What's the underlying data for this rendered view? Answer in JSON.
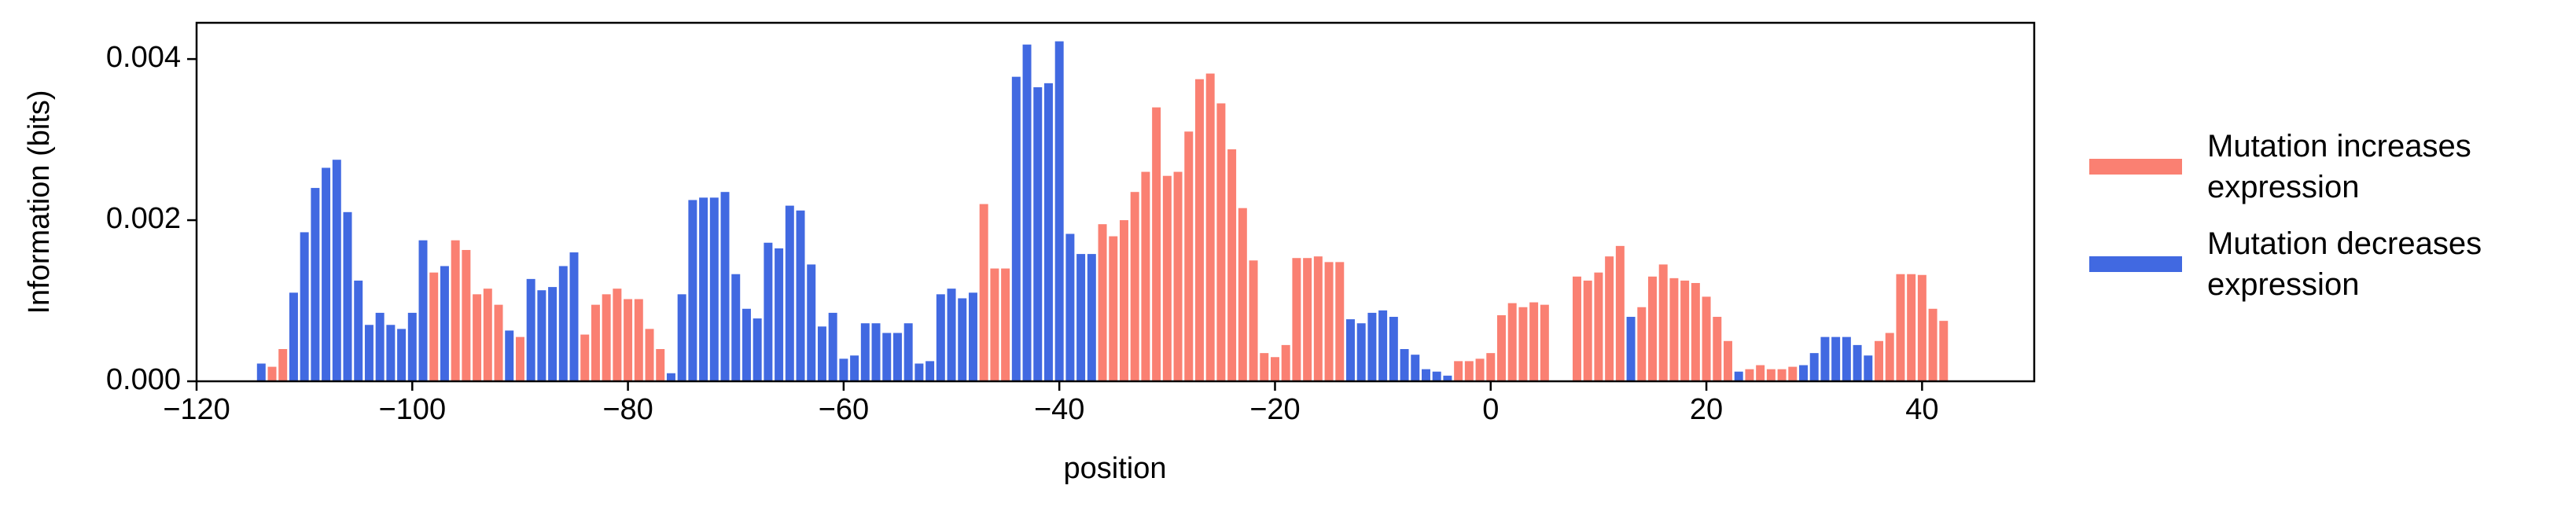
{
  "chart_data": {
    "type": "bar",
    "xlabel": "position",
    "ylabel": "Information (bits)",
    "xlim": [
      -120,
      50.4
    ],
    "ylim": [
      0,
      0.00445
    ],
    "xticks": [
      {
        "value": -120,
        "label": "−120"
      },
      {
        "value": -100,
        "label": "−100"
      },
      {
        "value": -80,
        "label": "−80"
      },
      {
        "value": -60,
        "label": "−60"
      },
      {
        "value": -40,
        "label": "−40"
      },
      {
        "value": -20,
        "label": "−20"
      },
      0,
      20,
      40
    ],
    "yticks": [
      {
        "value": 0,
        "label": "0.000"
      },
      {
        "value": 0.002,
        "label": "0.002"
      },
      {
        "value": 0.004,
        "label": "0.004"
      }
    ],
    "series": [
      {
        "name": "Mutation increases\nexpression",
        "color": "#fa8072",
        "x": [
          -113,
          -112,
          -98,
          -96,
          -95,
          -94,
          -93,
          -92,
          -90,
          -84,
          -83,
          -82,
          -81,
          -80,
          -79,
          -78,
          -77,
          -47,
          -46,
          -45,
          -36,
          -35,
          -34,
          -33,
          -32,
          -31,
          -30,
          -29,
          -28,
          -27,
          -26,
          -25,
          -24,
          -23,
          -22,
          -21,
          -20,
          -19,
          -18,
          -17,
          -16,
          -15,
          -14,
          -3,
          -2,
          -1,
          0,
          1,
          2,
          3,
          4,
          5,
          8,
          9,
          10,
          11,
          12,
          14,
          15,
          16,
          17,
          18,
          19,
          20,
          21,
          22,
          24,
          25,
          26,
          27,
          28,
          36,
          37,
          38,
          39,
          40,
          41,
          42
        ],
        "values": [
          0.00018,
          0.0004,
          0.00135,
          0.00175,
          0.00163,
          0.00108,
          0.00115,
          0.00095,
          0.00055,
          0.00058,
          0.00095,
          0.00108,
          0.00115,
          0.00102,
          0.00102,
          0.00065,
          0.0004,
          0.0022,
          0.0014,
          0.0014,
          0.00195,
          0.0018,
          0.002,
          0.00235,
          0.0026,
          0.0034,
          0.00255,
          0.0026,
          0.0031,
          0.00375,
          0.00382,
          0.00345,
          0.00288,
          0.00215,
          0.0015,
          0.00035,
          0.0003,
          0.00045,
          0.00153,
          0.00153,
          0.00155,
          0.00148,
          0.00148,
          0.00025,
          0.00025,
          0.00028,
          0.00035,
          0.00082,
          0.00097,
          0.00092,
          0.00098,
          0.00095,
          0.0013,
          0.00125,
          0.00135,
          0.00155,
          0.00168,
          0.00092,
          0.0013,
          0.00145,
          0.00128,
          0.00125,
          0.00122,
          0.00105,
          0.0008,
          0.0005,
          0.00015,
          0.0002,
          0.00015,
          0.00015,
          0.00018,
          0.0005,
          0.0006,
          0.00133,
          0.00133,
          0.00132,
          0.0009,
          0.00075
        ]
      },
      {
        "name": "Mutation decreases\nexpression",
        "color": "#4169e1",
        "x": [
          -114,
          -111,
          -110,
          -109,
          -108,
          -107,
          -106,
          -105,
          -104,
          -103,
          -102,
          -101,
          -100,
          -99,
          -97,
          -91,
          -89,
          -88,
          -87,
          -86,
          -85,
          -76,
          -75,
          -74,
          -73,
          -72,
          -71,
          -70,
          -69,
          -68,
          -67,
          -66,
          -65,
          -64,
          -63,
          -62,
          -61,
          -60,
          -59,
          -58,
          -57,
          -56,
          -55,
          -54,
          -53,
          -52,
          -51,
          -50,
          -49,
          -48,
          -44,
          -43,
          -42,
          -41,
          -40,
          -39,
          -38,
          -37,
          -13,
          -12,
          -11,
          -10,
          -9,
          -8,
          -7,
          -6,
          -5,
          -4,
          13,
          23,
          29,
          30,
          31,
          32,
          33,
          34,
          35
        ],
        "values": [
          0.00022,
          0.0011,
          0.00185,
          0.0024,
          0.00265,
          0.00275,
          0.0021,
          0.00125,
          0.0007,
          0.00085,
          0.0007,
          0.00065,
          0.00085,
          0.00175,
          0.00143,
          0.00063,
          0.00127,
          0.00113,
          0.00117,
          0.00143,
          0.0016,
          0.0001,
          0.00108,
          0.00225,
          0.00228,
          0.00228,
          0.00235,
          0.00133,
          0.0009,
          0.00078,
          0.00172,
          0.00165,
          0.00218,
          0.00212,
          0.00145,
          0.00068,
          0.00085,
          0.00028,
          0.00032,
          0.00072,
          0.00072,
          0.0006,
          0.0006,
          0.00072,
          0.00022,
          0.00025,
          0.00108,
          0.00115,
          0.00103,
          0.0011,
          0.00378,
          0.00418,
          0.00365,
          0.0037,
          0.00422,
          0.00183,
          0.00158,
          0.00158,
          0.00077,
          0.00072,
          0.00085,
          0.00088,
          0.0008,
          0.0004,
          0.00033,
          0.00015,
          0.00012,
          7e-05,
          0.0008,
          0.00012,
          0.0002,
          0.00035,
          0.00055,
          0.00055,
          0.00055,
          0.00045,
          0.00032
        ]
      }
    ]
  }
}
